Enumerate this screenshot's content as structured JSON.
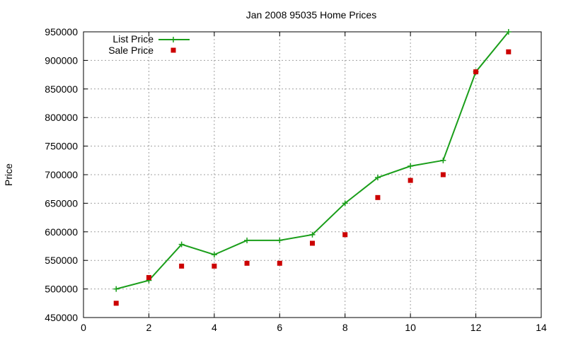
{
  "chart_data": {
    "type": "line",
    "title": "Jan 2008 95035 Home Prices",
    "xlabel": "",
    "ylabel": "Price",
    "xlim": [
      0,
      14
    ],
    "ylim": [
      450000,
      950000
    ],
    "x_ticks": [
      "0",
      "2",
      "4",
      "6",
      "8",
      "10",
      "12",
      "14"
    ],
    "y_ticks": [
      "450000",
      "500000",
      "550000",
      "600000",
      "650000",
      "700000",
      "750000",
      "800000",
      "850000",
      "900000",
      "950000"
    ],
    "grid": true,
    "legend_position": "top-left",
    "series": [
      {
        "name": "List Price",
        "style": "line-with-plus-markers",
        "color": "#1a9e1a",
        "x": [
          1,
          2,
          3,
          4,
          5,
          6,
          7,
          8,
          9,
          10,
          11,
          12,
          13
        ],
        "y": [
          500000,
          515000,
          578000,
          560000,
          585000,
          585000,
          595000,
          650000,
          695000,
          715000,
          725000,
          880000,
          950000
        ]
      },
      {
        "name": "Sale Price",
        "style": "square-markers",
        "color": "#cc0000",
        "x": [
          1,
          2,
          3,
          4,
          5,
          6,
          7,
          8,
          9,
          10,
          11,
          12,
          13
        ],
        "y": [
          475000,
          520000,
          540000,
          540000,
          545000,
          545000,
          580000,
          595000,
          660000,
          690000,
          700000,
          880000,
          915000
        ]
      }
    ]
  }
}
